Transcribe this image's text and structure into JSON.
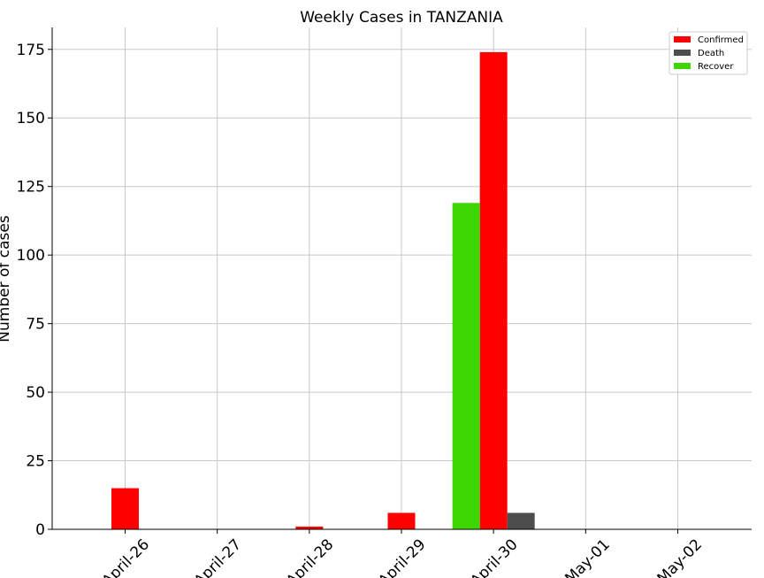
{
  "chart_data": {
    "type": "bar",
    "title": "Weekly Cases in TANZANIA",
    "xlabel": "",
    "ylabel": "Number of cases",
    "categories": [
      "April-26",
      "April-27",
      "April-28",
      "April-29",
      "April-30",
      "May-01",
      "May-02"
    ],
    "series": [
      {
        "name": "Confirmed",
        "color": "#ff0000",
        "values": [
          15,
          0,
          1,
          6,
          174,
          0,
          0
        ]
      },
      {
        "name": "Death",
        "color": "#4d4d4d",
        "values": [
          0,
          0,
          0,
          0,
          6,
          0,
          0
        ]
      },
      {
        "name": "Recover",
        "color": "#3ed603",
        "values": [
          0,
          0,
          0,
          0,
          119,
          0,
          0
        ]
      }
    ],
    "yticks": [
      0,
      25,
      50,
      75,
      100,
      125,
      150,
      175
    ],
    "ylim": [
      0,
      183
    ],
    "grid": true,
    "legend_position": "top-right"
  }
}
